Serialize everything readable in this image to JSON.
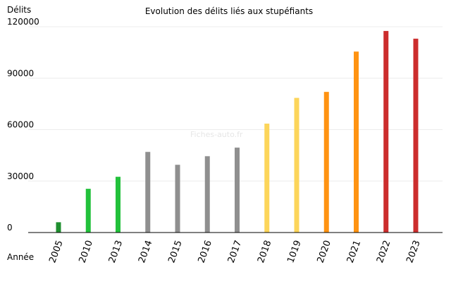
{
  "chart_data": {
    "type": "bar",
    "title": "Evolution des délits liés aux stupéfiants",
    "ylabel": "Délits",
    "xlabel": "Année",
    "watermark": "Fiches-auto.fr",
    "categories": [
      "2005",
      "2010",
      "2013",
      "2014",
      "2015",
      "2016",
      "2017",
      "2018",
      "1019",
      "2020",
      "2021",
      "2022",
      "2023"
    ],
    "values": [
      6000,
      25500,
      32500,
      47000,
      39500,
      44500,
      49500,
      63500,
      78500,
      82000,
      105500,
      117500,
      113000
    ],
    "colors": [
      "#1f8f2f",
      "#22c13b",
      "#22c13b",
      "#8f8f8f",
      "#8f8f8f",
      "#8f8f8f",
      "#8f8f8f",
      "#fcd55a",
      "#fcd55a",
      "#ff9312",
      "#ff9312",
      "#cc2d2d",
      "#cc2d2d"
    ],
    "ylim": [
      0,
      120000
    ],
    "yticks": [
      0,
      30000,
      60000,
      90000,
      120000
    ],
    "grid": true
  }
}
